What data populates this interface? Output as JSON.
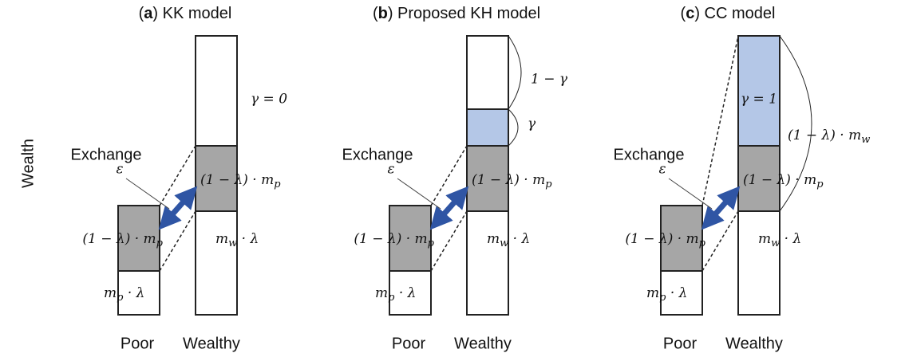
{
  "y_axis_label": "Wealth",
  "panels": [
    {
      "title": [
        "(",
        "a",
        ") KK model"
      ],
      "exchange": "Exchange",
      "epsilon": "ε",
      "gamma_label": "γ = 0",
      "poor_top": {
        "text": "(1 − λ) · m",
        "sub": "p"
      },
      "poor_bottom": {
        "text": "m",
        "sub": "p",
        "after": " · λ"
      },
      "wealthy_mid": {
        "text": "(1 − λ)  · m",
        "sub": "p"
      },
      "wealthy_bottom": {
        "text": "m",
        "sub": "w",
        "after": " · λ"
      },
      "x_labels": [
        "Poor",
        "Wealthy"
      ]
    },
    {
      "title": [
        "(",
        "b",
        ") Proposed KH model"
      ],
      "exchange": "Exchange",
      "epsilon": "ε",
      "brace_top": "1 − γ",
      "brace_bottom": "γ",
      "poor_top": {
        "text": "(1 − λ) · m",
        "sub": "p"
      },
      "poor_bottom": {
        "text": "m",
        "sub": "p",
        "after": " · λ"
      },
      "wealthy_mid": {
        "text": "(1 − λ)  · m",
        "sub": "p"
      },
      "wealthy_bottom": {
        "text": "m",
        "sub": "w",
        "after": " · λ"
      },
      "x_labels": [
        "Poor",
        "Wealthy"
      ]
    },
    {
      "title": [
        "(",
        "c",
        ") CC model"
      ],
      "exchange": "Exchange",
      "epsilon": "ε",
      "gamma_label": "γ = 1",
      "brace_all": {
        "text": "(1 − λ)  · m",
        "sub": "w"
      },
      "poor_top": {
        "text": "(1 − λ) · m",
        "sub": "p"
      },
      "poor_bottom": {
        "text": "m",
        "sub": "p",
        "after": " · λ"
      },
      "wealthy_mid": {
        "text": "(1 − λ)  · m",
        "sub": "p"
      },
      "wealthy_bottom": {
        "text": "m",
        "sub": "w",
        "after": " · λ"
      },
      "x_labels": [
        "Poor",
        "Wealthy"
      ]
    }
  ]
}
